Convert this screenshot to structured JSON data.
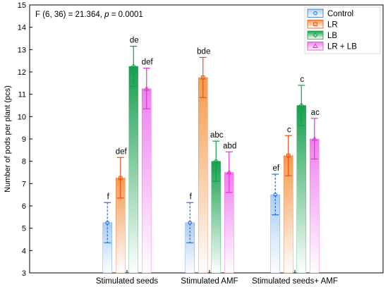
{
  "chart_data": {
    "type": "bar",
    "title": "",
    "annotation": "F (6, 36) = 21.364, p = 0.0001",
    "ylabel": "Number of pods per plant (pcs)",
    "xlabel": "",
    "ylim": [
      3,
      15
    ],
    "yticks": [
      3,
      4,
      5,
      6,
      7,
      8,
      9,
      10,
      11,
      12,
      13,
      14,
      15
    ],
    "categories": [
      "Stimulated seeds",
      "Stimulated AMF",
      "Stimulated seeds+ AMF"
    ],
    "legend_position": "top-right",
    "series": [
      {
        "name": "Control",
        "color": "#2f6fd6",
        "fill_top": "#a9cdf3",
        "marker": "circle",
        "values": [
          5.25,
          5.25,
          6.5
        ],
        "err_low": [
          4.35,
          4.35,
          5.6
        ],
        "err_high": [
          6.15,
          6.15,
          7.42
        ],
        "labels": [
          "f",
          "f",
          "ef"
        ]
      },
      {
        "name": "LR",
        "color": "#e8501c",
        "fill_top": "#f59a4c",
        "marker": "square",
        "values": [
          7.25,
          11.75,
          8.25
        ],
        "err_low": [
          6.35,
          10.85,
          7.35
        ],
        "err_high": [
          8.17,
          12.65,
          9.15
        ],
        "labels": [
          "def",
          "bde",
          "c"
        ]
      },
      {
        "name": "LB",
        "color": "#12a04a",
        "fill_top": "#16a04e",
        "marker": "diamond",
        "values": [
          12.25,
          8.0,
          10.5
        ],
        "err_low": [
          11.35,
          7.1,
          9.6
        ],
        "err_high": [
          13.15,
          8.9,
          11.4
        ],
        "labels": [
          "de",
          "abc",
          "c"
        ]
      },
      {
        "name": "LR + LB",
        "color": "#e433d8",
        "fill_top": "#f07ff0",
        "marker": "triangle",
        "values": [
          11.25,
          7.5,
          9.0
        ],
        "err_low": [
          10.35,
          6.6,
          8.1
        ],
        "err_high": [
          12.17,
          8.42,
          9.92
        ],
        "labels": [
          "def",
          "abd",
          "ac"
        ]
      }
    ]
  }
}
